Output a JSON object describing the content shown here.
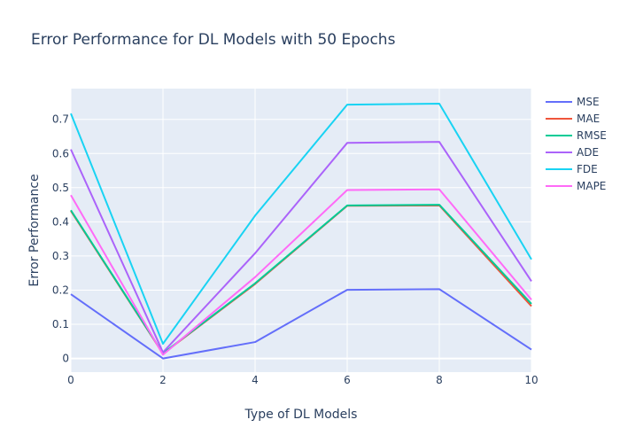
{
  "chart_data": {
    "type": "line",
    "title": "Error Performance for DL Models with 50 Epochs",
    "xlabel": "Type of DL Models",
    "ylabel": "Error Performance",
    "xlim": [
      0,
      10
    ],
    "ylim": [
      -0.04,
      0.79
    ],
    "xticks": [
      0,
      2,
      4,
      6,
      8,
      10
    ],
    "yticks": [
      0,
      0.1,
      0.2,
      0.3,
      0.4,
      0.5,
      0.6,
      0.7
    ],
    "x": [
      0,
      2,
      4,
      6,
      8,
      10
    ],
    "grid": true,
    "legend_position": "top-right",
    "series": [
      {
        "name": "MSE",
        "color": "#636efa",
        "values": [
          0.188,
          0.0,
          0.048,
          0.201,
          0.203,
          0.026
        ]
      },
      {
        "name": "MAE",
        "color": "#ef553b",
        "values": [
          0.432,
          0.014,
          0.218,
          0.447,
          0.448,
          0.153
        ]
      },
      {
        "name": "RMSE",
        "color": "#00cc96",
        "values": [
          0.434,
          0.015,
          0.22,
          0.448,
          0.45,
          0.16
        ]
      },
      {
        "name": "ADE",
        "color": "#ab63fa",
        "values": [
          0.612,
          0.018,
          0.308,
          0.631,
          0.634,
          0.226
        ]
      },
      {
        "name": "FDE",
        "color": "#19d3f3",
        "values": [
          0.717,
          0.043,
          0.418,
          0.743,
          0.746,
          0.29
        ]
      },
      {
        "name": "MAPE",
        "color": "#ff6af7",
        "values": [
          0.478,
          0.011,
          0.238,
          0.493,
          0.495,
          0.172
        ]
      }
    ]
  }
}
